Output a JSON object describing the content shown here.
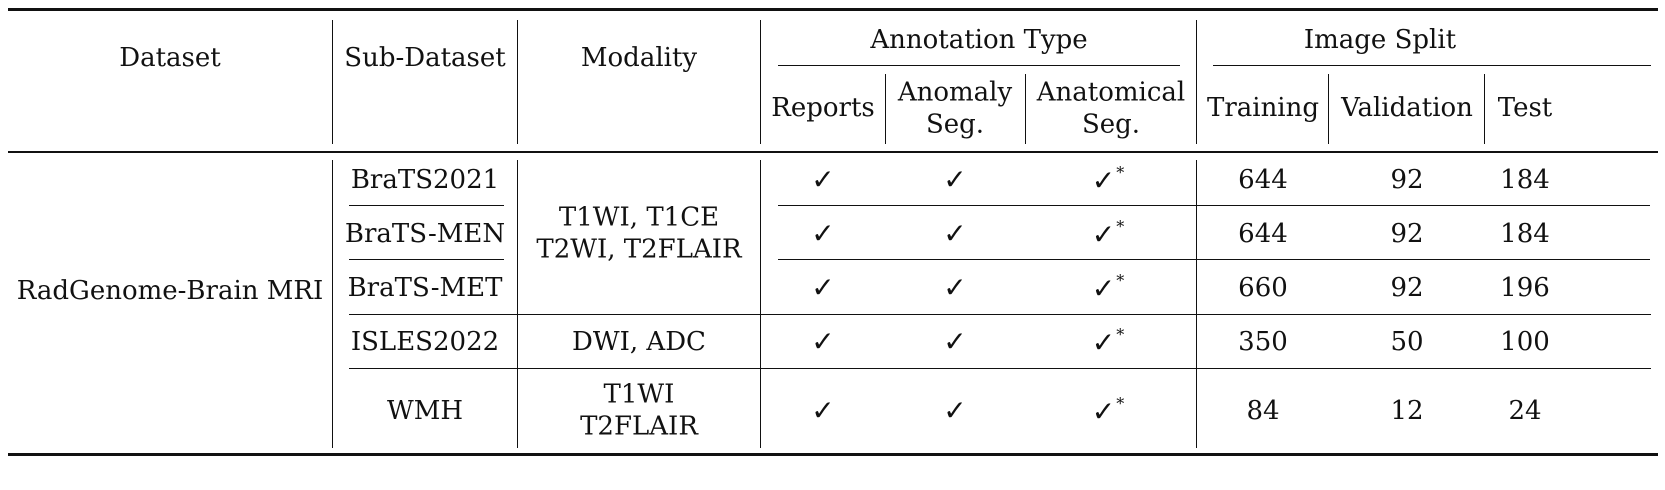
{
  "header": {
    "dataset": "Dataset",
    "sub_dataset": "Sub-Dataset",
    "modality": "Modality",
    "annotation_type": "Annotation Type",
    "image_split": "Image Split",
    "reports": "Reports",
    "anomaly_seg": "Anomaly\nSeg.",
    "anatomical_seg": "Anatomical\nSeg.",
    "training": "Training",
    "validation": "Validation",
    "test": "Test"
  },
  "dataset_name": "RadGenome-Brain MRI",
  "modality_groups": [
    "T1WI, T1CE\nT2WI, T2FLAIR",
    "DWI, ADC",
    "T1WI\nT2FLAIR"
  ],
  "check_symbol": "✓",
  "asterisk": "*",
  "rows": [
    {
      "sub_dataset": "BraTS2021",
      "reports": true,
      "anomaly_seg": true,
      "anatomical_seg": true,
      "training": "644",
      "validation": "92",
      "test": "184"
    },
    {
      "sub_dataset": "BraTS-MEN",
      "reports": true,
      "anomaly_seg": true,
      "anatomical_seg": true,
      "training": "644",
      "validation": "92",
      "test": "184"
    },
    {
      "sub_dataset": "BraTS-MET",
      "reports": true,
      "anomaly_seg": true,
      "anatomical_seg": true,
      "training": "660",
      "validation": "92",
      "test": "196"
    },
    {
      "sub_dataset": "ISLES2022",
      "reports": true,
      "anomaly_seg": true,
      "anatomical_seg": true,
      "training": "350",
      "validation": "50",
      "test": "100"
    },
    {
      "sub_dataset": "WMH",
      "reports": true,
      "anomaly_seg": true,
      "anatomical_seg": true,
      "training": "84",
      "validation": "12",
      "test": "24"
    }
  ]
}
